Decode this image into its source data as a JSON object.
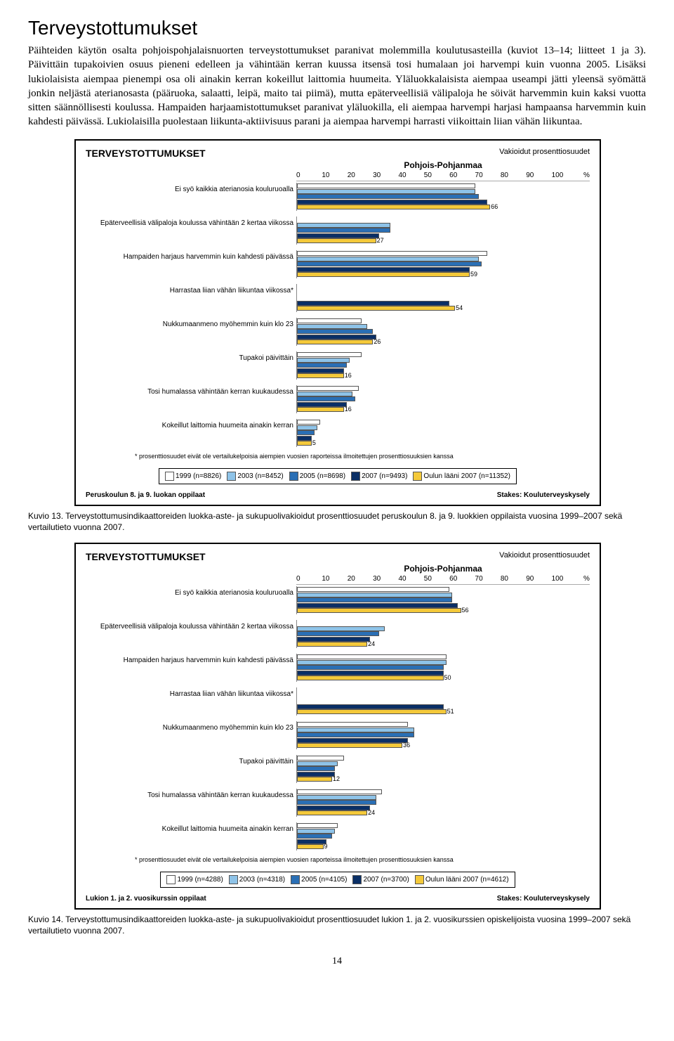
{
  "page_title": "Terveystottumukset",
  "body_text": "Päihteiden käytön osalta pohjoispohjalaisnuorten terveystottumukset paranivat molemmilla koulutusasteilla (kuviot 13–14; liitteet 1 ja 3). Päivittäin tupakoivien osuus pieneni edelleen ja vähintään kerran kuussa itsensä tosi humalaan joi harvempi kuin vuonna 2005. Lisäksi lukiolaisista aiempaa pienempi osa oli ainakin kerran kokeillut laittomia huumeita. Yläluokkalaisista aiempaa useampi jätti yleensä syömättä jonkin neljästä aterianosasta (pääruoka, salaatti, leipä, maito tai piimä), mutta epäterveellisiä välipaloja he söivät harvemmin kuin kaksi vuotta sitten säännöllisesti koulussa. Hampaiden harjaamistottumukset paranivat yläluokilla, eli aiempaa harvempi harjasi hampaansa harvemmin kuin kahdesti päivässä. Lukiolaisilla puolestaan liikunta-aktiivisuus parani ja aiempaa harvempi harrasti viikoittain liian vähän liikuntaa.",
  "chart_common": {
    "title": "TERVEYSTOTTUMUKSET",
    "subhead": "Vakioidut prosenttiosuudet",
    "region": "Pohjois-Pohjanmaa",
    "x_ticks": [
      "0",
      "10",
      "20",
      "30",
      "40",
      "50",
      "60",
      "70",
      "80",
      "90",
      "100"
    ],
    "pct_symbol": "%",
    "indicators": [
      "Ei syö kaikkia aterianosia kouluruoalla",
      "Epäterveellisiä välipaloja koulussa vähintään 2 kertaa viikossa",
      "Hampaiden harjaus harvemmin kuin kahdesti päivässä",
      "Harrastaa liian vähän liikuntaa viikossa*",
      "Nukkumaanmeno myöhemmin kuin klo 23",
      "Tupakoi päivittäin",
      "Tosi humalassa vähintään kerran kuukaudessa",
      "Kokeillut laittomia huumeita ainakin kerran"
    ],
    "colors": {
      "y1999": "#ffffff",
      "y2003": "#8ec3e8",
      "y2005": "#2a6fb5",
      "y2007": "#0a2f66",
      "oulu2007": "#f4c93a",
      "border": "#555555"
    },
    "footnote": "* prosenttiosuudet eivät ole vertailukelpoisia aiempien vuosien raporteissa ilmoitettujen prosenttiosuuksien kanssa"
  },
  "chart1": {
    "values": [
      [
        61,
        61,
        62,
        65,
        66
      ],
      [
        null,
        32,
        32,
        28,
        27
      ],
      [
        65,
        62,
        63,
        59,
        59
      ],
      [
        null,
        null,
        null,
        52,
        54
      ],
      [
        22,
        24,
        26,
        27,
        26
      ],
      [
        22,
        18,
        17,
        16,
        16
      ],
      [
        21,
        19,
        20,
        17,
        16
      ],
      [
        8,
        7,
        6,
        5,
        5
      ]
    ],
    "last_labels": [
      66,
      27,
      59,
      54,
      26,
      16,
      16,
      5
    ],
    "legend": [
      "1999 (n=8826)",
      "2003 (n=8452)",
      "2005 (n=8698)",
      "2007 (n=9493)",
      "Oulun lääni 2007 (n=11352)"
    ],
    "footer_left": "Peruskoulun 8. ja 9. luokan oppilaat",
    "footer_right": "Stakes: Kouluterveyskysely"
  },
  "chart2": {
    "values": [
      [
        52,
        53,
        53,
        55,
        56
      ],
      [
        null,
        30,
        28,
        25,
        24
      ],
      [
        51,
        51,
        50,
        50,
        50
      ],
      [
        null,
        null,
        null,
        50,
        51
      ],
      [
        38,
        40,
        40,
        38,
        36
      ],
      [
        16,
        14,
        13,
        13,
        12
      ],
      [
        29,
        27,
        27,
        25,
        24
      ],
      [
        14,
        13,
        12,
        10,
        9
      ]
    ],
    "last_labels": [
      56,
      24,
      50,
      51,
      36,
      12,
      24,
      9
    ],
    "legend": [
      "1999 (n=4288)",
      "2003 (n=4318)",
      "2005 (n=4105)",
      "2007 (n=3700)",
      "Oulun lääni 2007 (n=4612)"
    ],
    "footer_left": "Lukion 1. ja 2. vuosikurssin oppilaat",
    "footer_right": "Stakes: Kouluterveyskysely"
  },
  "caption1": "Kuvio 13. Terveystottumusindikaattoreiden luokka-aste- ja sukupuolivakioidut prosenttiosuudet peruskoulun 8. ja 9. luokkien oppilaista vuosina 1999–2007 sekä vertailutieto vuonna 2007.",
  "caption2": "Kuvio 14. Terveystottumusindikaattoreiden luokka-aste- ja sukupuolivakioidut prosenttiosuudet lukion 1. ja 2. vuosikurssien opiskelijoista vuosina 1999–2007 sekä vertailutieto vuonna 2007.",
  "page_number": "14"
}
